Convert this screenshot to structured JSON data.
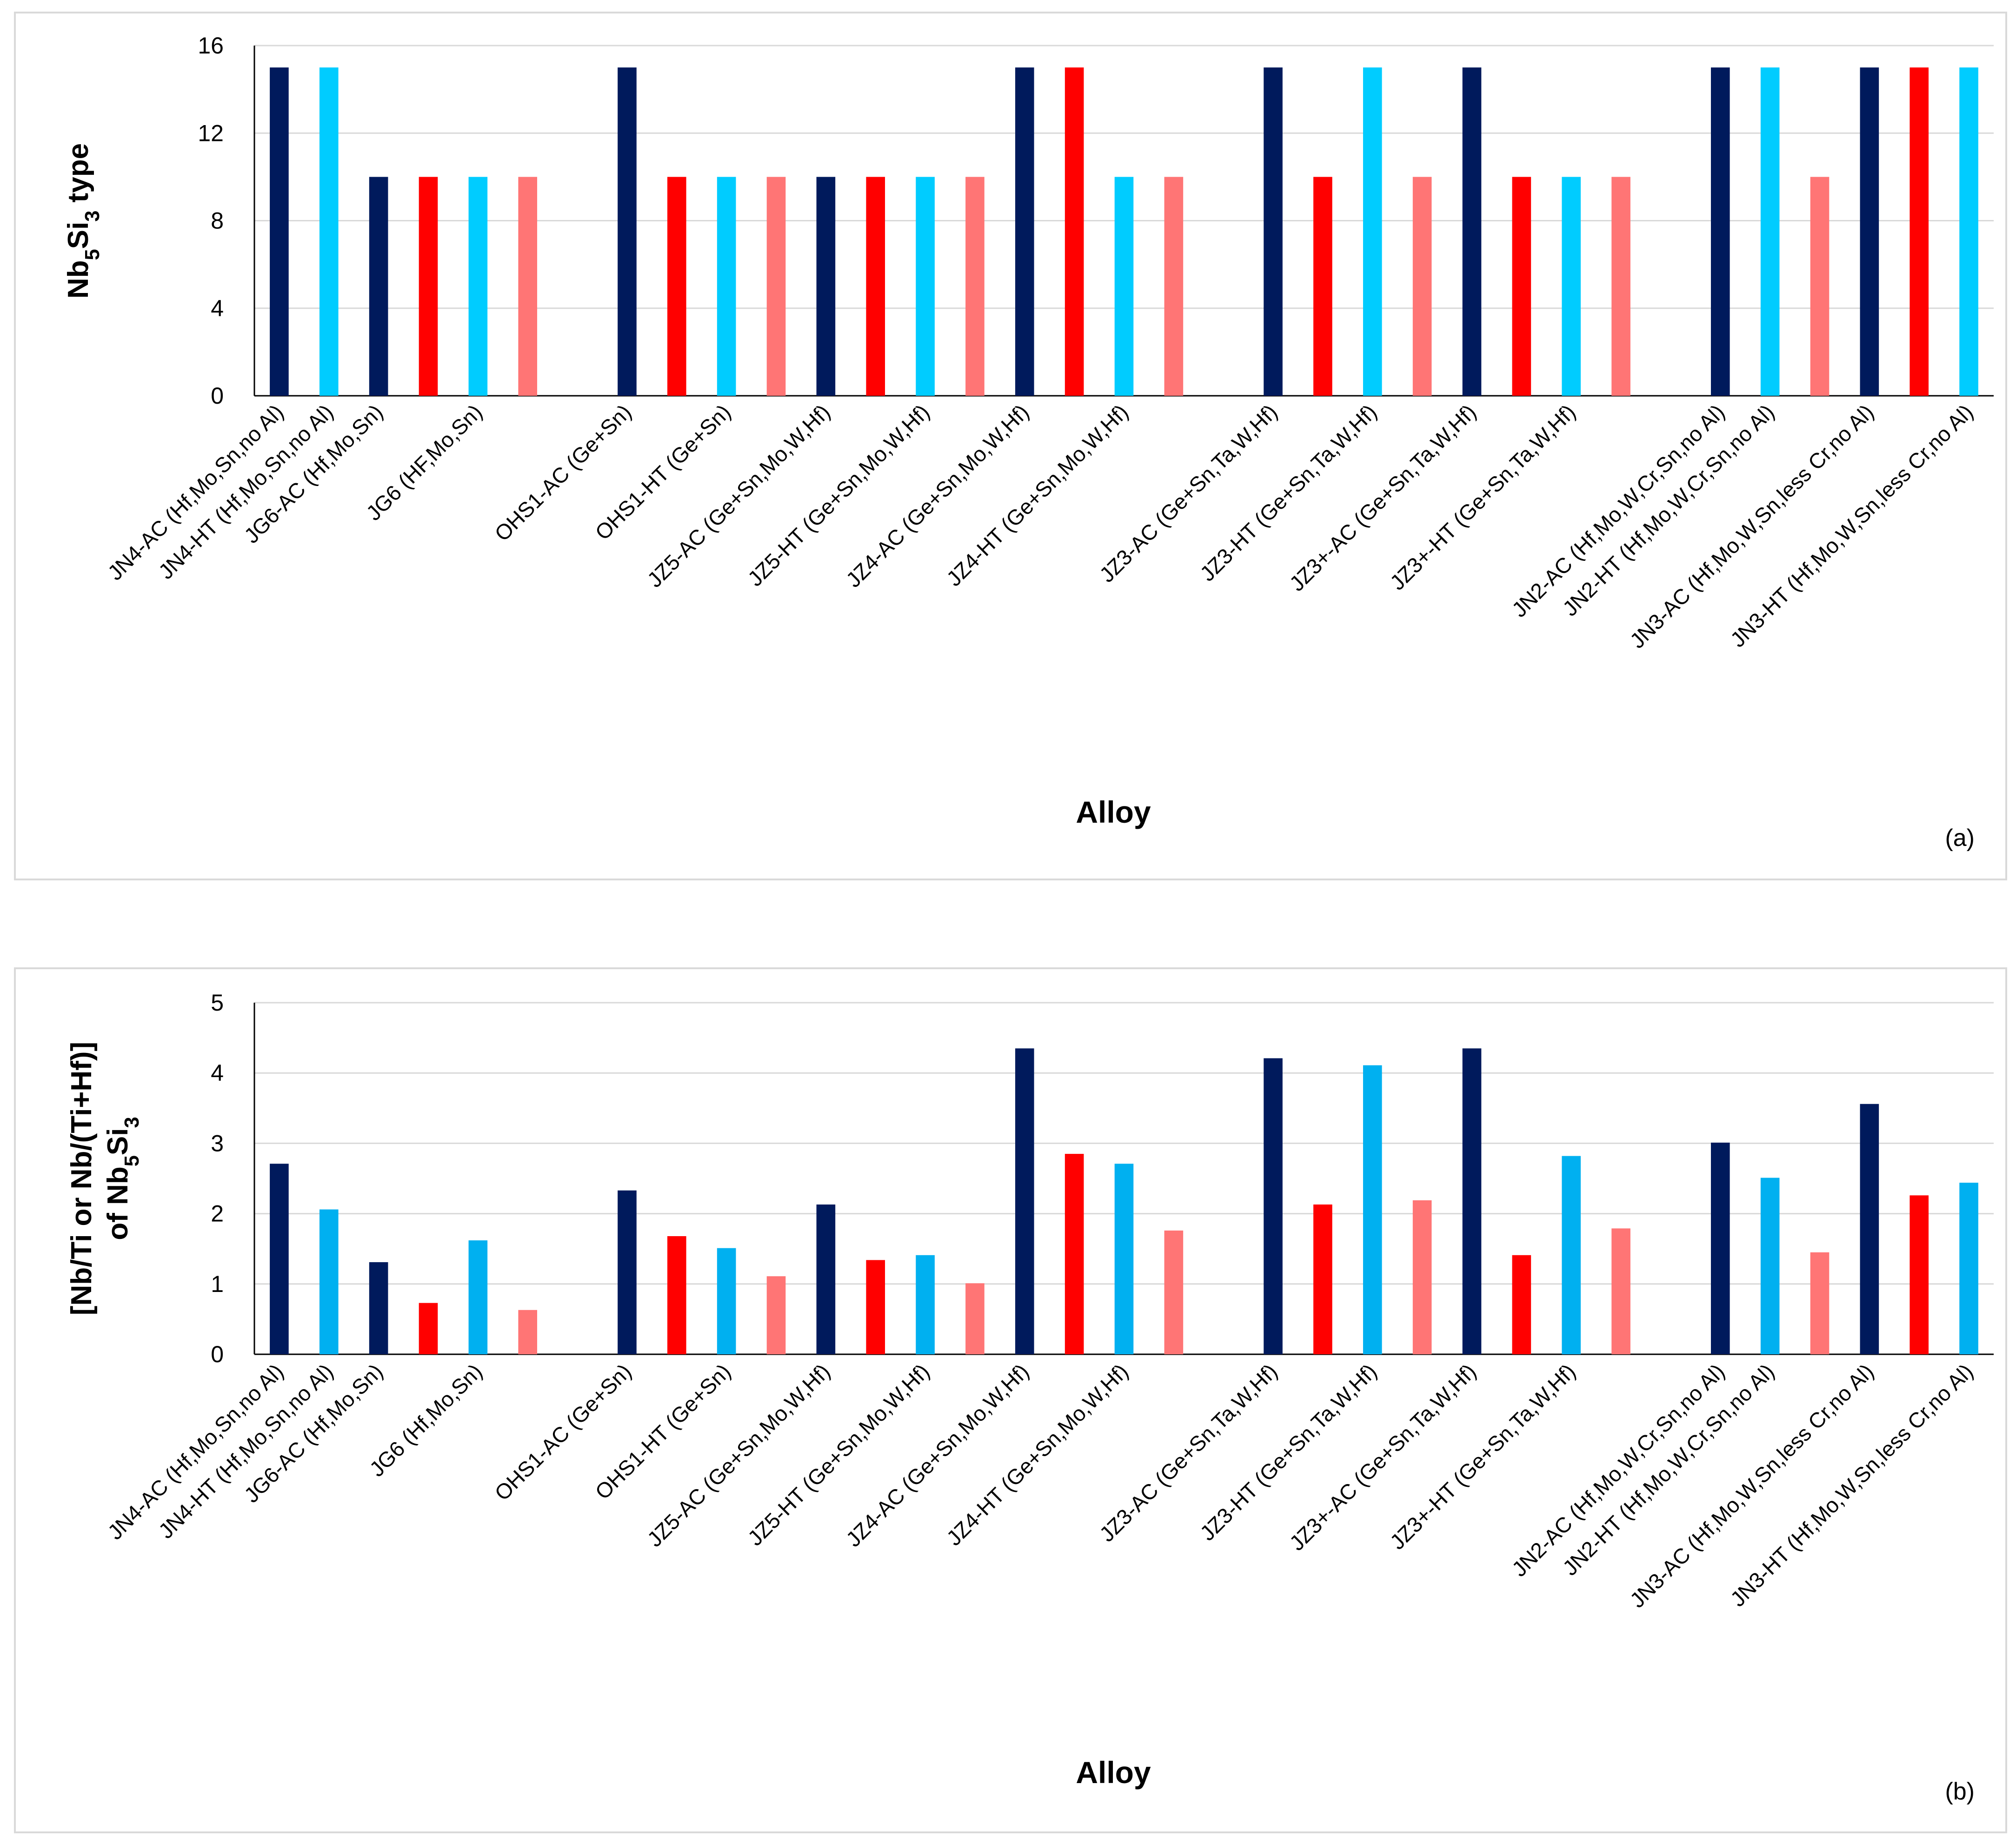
{
  "chart_data": [
    {
      "type": "bar",
      "panel_label": "(a)",
      "xlabel": "Alloy",
      "ylabel": "Nb5Si3 type",
      "ylim": [
        0,
        16
      ],
      "yticks": [
        0,
        4,
        8,
        12,
        16
      ],
      "grid": true,
      "categories": [
        "JN4-AC (Hf,Mo,Sn,no Al)",
        "JN4-HT (Hf,Mo,Sn,no Al)",
        "JG6-AC (Hf,Mo,Sn)",
        "",
        "JG6 (HF,Mo,Sn)",
        "",
        "",
        "OHS1-AC (Ge+Sn)",
        "",
        "OHS1-HT (Ge+Sn)",
        "",
        "JZ5-AC (Ge+Sn,Mo,W,Hf)",
        "",
        "JZ5-HT (Ge+Sn,Mo,W,Hf)",
        "",
        "JZ4-AC (Ge+Sn,Mo,W,Hf)",
        "",
        "JZ4-HT (Ge+Sn,Mo,W,Hf)",
        "",
        "",
        "JZ3-AC (Ge+Sn,Ta,W,Hf)",
        "",
        "JZ3-HT (Ge+Sn,Ta,W,Hf)",
        "",
        "JZ3+-AC (Ge+Sn,Ta,W,Hf)",
        "",
        "JZ3+-HT (Ge+Sn,Ta,W,Hf)",
        "",
        "",
        "JN2-AC (Hf,Mo,W,Cr,Sn,no Al)",
        "JN2-HT (Hf,Mo,W,Cr,Sn,no Al)",
        "",
        "JN3-AC (Hf,Mo,W,Sn,less Cr,no Al)",
        "",
        "JN3-HT (Hf,Mo,W,Sn,less Cr,no Al)"
      ],
      "values": [
        15,
        15,
        10,
        10,
        10,
        10,
        null,
        15,
        10,
        10,
        10,
        10,
        10,
        10,
        10,
        15,
        15,
        10,
        10,
        null,
        15,
        10,
        15,
        10,
        15,
        10,
        10,
        10,
        null,
        15,
        15,
        10,
        15,
        15,
        15
      ],
      "bar_colors": [
        "#001a5c",
        "#00ccff",
        "#001a5c",
        "#ff0000",
        "#00ccff",
        "#ff7575",
        null,
        "#001a5c",
        "#ff0000",
        "#00ccff",
        "#ff7575",
        "#001a5c",
        "#ff0000",
        "#00ccff",
        "#ff7575",
        "#001a5c",
        "#ff0000",
        "#00ccff",
        "#ff7575",
        null,
        "#001a5c",
        "#ff0000",
        "#00ccff",
        "#ff7575",
        "#001a5c",
        "#ff0000",
        "#00ccff",
        "#ff7575",
        null,
        "#001a5c",
        "#00ccff",
        "#ff7575",
        "#001a5c",
        "#ff0000",
        "#00ccff"
      ]
    },
    {
      "type": "bar",
      "panel_label": "(b)",
      "xlabel": "Alloy",
      "ylabel_line1": "[Nb/Ti or Nb/(Ti+Hf)]",
      "ylabel_line2": "of Nb5Si3",
      "ylim": [
        0,
        5
      ],
      "yticks": [
        0,
        1,
        2,
        3,
        4,
        5
      ],
      "grid": true,
      "categories": [
        "JN4-AC (Hf,Mo,Sn,no Al)",
        "JN4-HT (Hf,Mo,Sn,no Al)",
        "JG6-AC (Hf,Mo,Sn)",
        "",
        "JG6 (Hf,Mo,Sn)",
        "",
        "",
        "OHS1-AC (Ge+Sn)",
        "",
        "OHS1-HT (Ge+Sn)",
        "",
        "JZ5-AC (Ge+Sn,Mo,W,Hf)",
        "",
        "JZ5-HT (Ge+Sn,Mo,W,Hf)",
        "",
        "JZ4-AC (Ge+Sn,Mo,W,Hf)",
        "",
        "JZ4-HT (Ge+Sn,Mo,W,Hf)",
        "",
        "",
        "JZ3-AC (Ge+Sn,Ta,W,Hf)",
        "",
        "JZ3-HT (Ge+Sn,Ta,W,Hf)",
        "",
        "JZ3+-AC (Ge+Sn,Ta,W,Hf)",
        "",
        "JZ3+-HT (Ge+Sn,Ta,W,Hf)",
        "",
        "",
        "JN2-AC (Hf,Mo,W,Cr,Sn,no Al)",
        "JN2-HT (Hf,Mo,W,Cr,Sn,no Al)",
        "",
        "JN3-AC (Hf,Mo,W,Sn,less Cr,no Al)",
        "",
        "JN3-HT (Hf,Mo,W,Sn,less Cr,no Al)"
      ],
      "values": [
        2.71,
        2.06,
        1.31,
        0.73,
        1.62,
        0.63,
        null,
        2.33,
        1.68,
        1.51,
        1.11,
        2.13,
        1.34,
        1.41,
        1.01,
        4.35,
        2.85,
        2.71,
        1.76,
        null,
        4.21,
        2.13,
        4.11,
        2.19,
        4.35,
        1.41,
        2.82,
        1.79,
        null,
        3.01,
        2.51,
        1.45,
        3.56,
        2.26,
        2.44
      ],
      "bar_colors": [
        "#001a5c",
        "#00b0f0",
        "#001a5c",
        "#ff0000",
        "#00b0f0",
        "#ff7575",
        null,
        "#001a5c",
        "#ff0000",
        "#00b0f0",
        "#ff7575",
        "#001a5c",
        "#ff0000",
        "#00b0f0",
        "#ff7575",
        "#001a5c",
        "#ff0000",
        "#00b0f0",
        "#ff7575",
        null,
        "#001a5c",
        "#ff0000",
        "#00b0f0",
        "#ff7575",
        "#001a5c",
        "#ff0000",
        "#00b0f0",
        "#ff7575",
        null,
        "#001a5c",
        "#00b0f0",
        "#ff7575",
        "#001a5c",
        "#ff0000",
        "#00b0f0"
      ]
    }
  ]
}
